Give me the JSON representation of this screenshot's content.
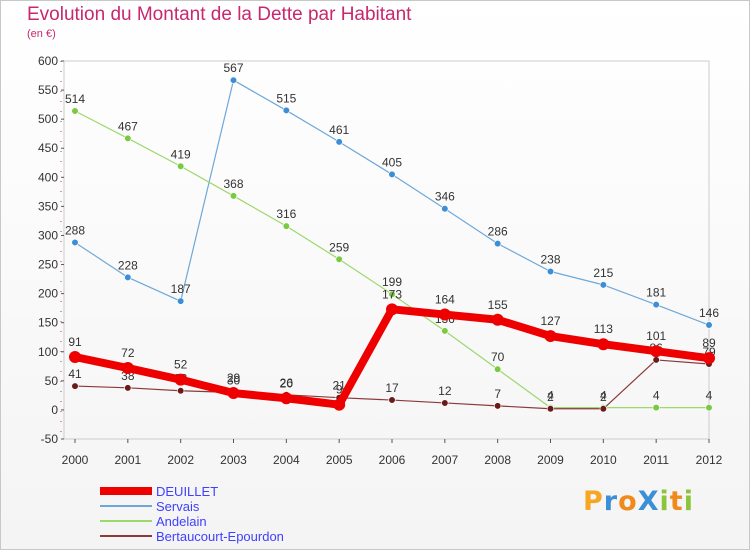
{
  "title": "Evolution du Montant de la Dette par Habitant",
  "subtitle": "(en €)",
  "logo": {
    "text": "Proxiti",
    "letters": [
      {
        "ch": "P",
        "color": "#f5a623"
      },
      {
        "ch": "r",
        "color": "#3c8fd6"
      },
      {
        "ch": "o",
        "color": "#f08a1c"
      },
      {
        "ch": "X",
        "color": "#3c8fd6"
      },
      {
        "ch": "i",
        "color": "#8cc43c"
      },
      {
        "ch": "t",
        "color": "#f08a1c"
      },
      {
        "ch": "i",
        "color": "#8cc43c"
      }
    ]
  },
  "chart_data": {
    "type": "line",
    "title": "Evolution du Montant de la Dette par Habitant",
    "subtitle": "(en €)",
    "x": [
      "2000",
      "2001",
      "2002",
      "2003",
      "2004",
      "2005",
      "2006",
      "2007",
      "2008",
      "2009",
      "2010",
      "2011",
      "2012"
    ],
    "ylim": [
      -50,
      600
    ],
    "yticks": [
      -50,
      0,
      50,
      100,
      150,
      200,
      250,
      300,
      350,
      400,
      450,
      500,
      550,
      600
    ],
    "grid": false,
    "legend_position": "bottom-left",
    "series": [
      {
        "name": "Servais",
        "color": "#6fa8d8",
        "marker_color": "#3c8fd6",
        "width": 1.2,
        "values": [
          288,
          228,
          187,
          567,
          515,
          461,
          405,
          346,
          286,
          238,
          215,
          181,
          146
        ],
        "labels": [
          "288",
          "228",
          "187",
          "567",
          "515",
          "461",
          "405",
          "346",
          "286",
          "238",
          "215",
          "181",
          "146"
        ]
      },
      {
        "name": "Andelain",
        "color": "#9cd86a",
        "marker_color": "#7ac943",
        "width": 1.2,
        "values": [
          514,
          467,
          419,
          368,
          316,
          259,
          199,
          136,
          70,
          4,
          4,
          4,
          4
        ],
        "labels": [
          "514",
          "467",
          "419",
          "368",
          "316",
          "259",
          "199",
          "136",
          "70",
          "4",
          "4",
          "4",
          "4"
        ]
      },
      {
        "name": "Bertaucourt-Epourdon",
        "color": "#8b3a3a",
        "marker_color": "#6b1a1a",
        "width": 1.2,
        "values": [
          41,
          38,
          33,
          30,
          26,
          21,
          17,
          12,
          7,
          2,
          2,
          86,
          79
        ],
        "labels": [
          "41",
          "38",
          "33",
          "30",
          "26",
          "21",
          "17",
          "12",
          "7",
          "2",
          "2",
          "86",
          "79"
        ]
      },
      {
        "name": "DEUILLET",
        "color": "#ee0000",
        "marker_color": "#ee0000",
        "width": 8,
        "values": [
          91,
          72,
          52,
          29,
          20,
          9,
          173,
          164,
          155,
          127,
          113,
          101,
          89
        ],
        "labels": [
          "91",
          "72",
          "52",
          "29",
          "20",
          "9",
          "173",
          "164",
          "155",
          "127",
          "113",
          "101",
          "89"
        ]
      }
    ]
  },
  "legend": [
    {
      "name": "DEUILLET",
      "color": "#ee0000",
      "width": 8
    },
    {
      "name": "Servais",
      "color": "#6fa8d8",
      "width": 1.5
    },
    {
      "name": "Andelain",
      "color": "#9cd86a",
      "width": 1.5
    },
    {
      "name": "Bertaucourt-Epourdon",
      "color": "#8b3a3a",
      "width": 1.5
    }
  ]
}
